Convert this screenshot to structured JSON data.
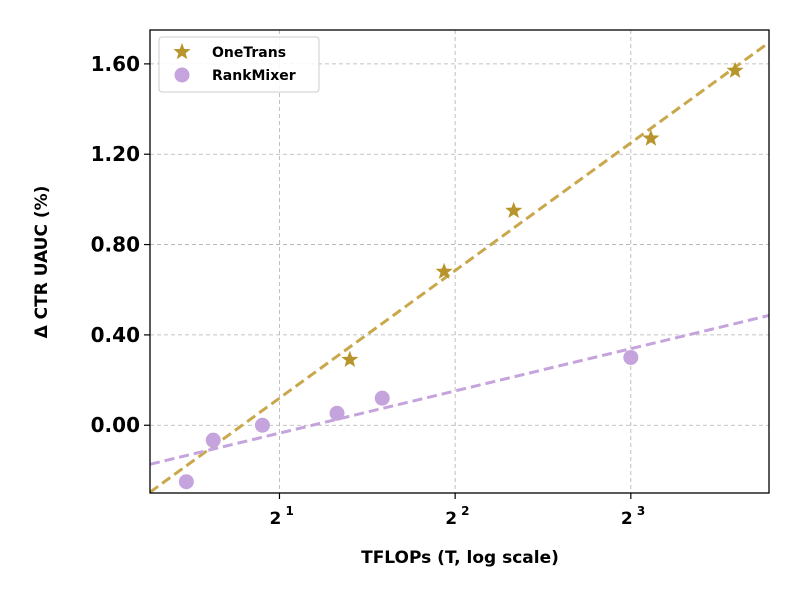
{
  "chart_data": {
    "type": "scatter",
    "title": "",
    "xlabel": "TFLOPs (T, log scale)",
    "ylabel": "Δ CTR UAUC (%)",
    "x_scale": "log2",
    "xlim": [
      1.2,
      13.8
    ],
    "ylim": [
      -0.3,
      1.75
    ],
    "x_ticks": [
      2,
      4,
      8
    ],
    "x_tick_labels": [
      "2",
      "2",
      "2"
    ],
    "x_tick_exponents": [
      "1",
      "2",
      "3"
    ],
    "y_ticks": [
      0.0,
      0.4,
      0.8,
      1.2,
      1.6
    ],
    "y_tick_labels": [
      "0.00",
      "0.40",
      "0.80",
      "1.20",
      "1.60"
    ],
    "grid": true,
    "legend_position": "top-left",
    "series": [
      {
        "name": "OneTrans",
        "marker": "star",
        "color": "#b8952c",
        "line_color": "#c9a84c",
        "x": [
          2.64,
          3.83,
          5.04,
          8.66,
          12.07
        ],
        "y": [
          0.29,
          0.68,
          0.95,
          1.27,
          1.57
        ],
        "trend": {
          "value_at_2": 0.12,
          "slope_per_doubling": 0.565
        }
      },
      {
        "name": "RankMixer",
        "marker": "circle",
        "color": "#c5a3dc",
        "line_color": "#c5a3dc",
        "x": [
          1.385,
          1.54,
          1.87,
          2.51,
          3.0,
          8.0
        ],
        "y": [
          -0.25,
          -0.066,
          0.0,
          0.053,
          0.12,
          0.3
        ],
        "trend": {
          "value_at_2": -0.035,
          "slope_per_doubling": 0.187
        }
      }
    ]
  }
}
